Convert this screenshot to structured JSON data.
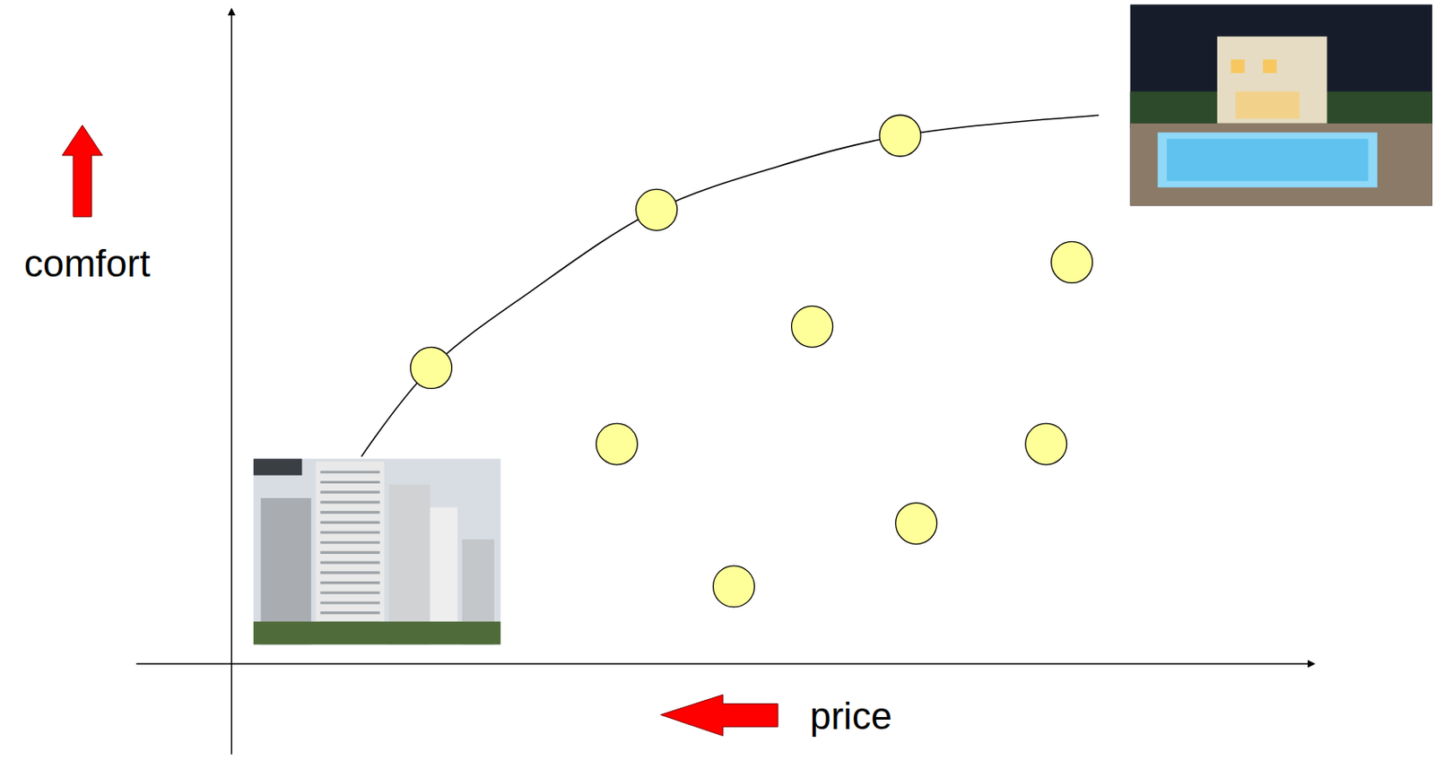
{
  "chart_data": {
    "type": "scatter",
    "x_label": "price",
    "y_label": "comfort",
    "xlim": [
      -9,
      101
    ],
    "ylim": [
      -14,
      100
    ],
    "tick_labels": false,
    "grid": false,
    "series": [
      {
        "type": "line",
        "color": "#000000",
        "line_style": "solid",
        "x": [
          12.1,
          18.6,
          27.9,
          39.6,
          50.9,
          62.3,
          80.8
        ],
        "values": [
          31.6,
          45.1,
          56.8,
          69.2,
          75.8,
          80.5,
          83.6
        ]
      },
      {
        "type": "scatter",
        "color": "#ffff99",
        "marker": "circle",
        "x": [
          18.6,
          39.6,
          62.3,
          78.3,
          54.1,
          35.9,
          75.9,
          63.8,
          46.8
        ],
        "values": [
          45.1,
          69.2,
          80.5,
          61.2,
          51.4,
          33.5,
          33.5,
          21.4,
          11.8
        ]
      }
    ]
  }
}
